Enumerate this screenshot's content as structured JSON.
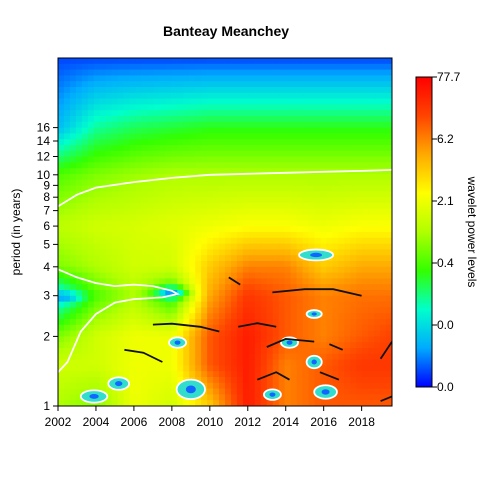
{
  "chart_data": {
    "type": "heatmap",
    "title": "Banteay Meanchey",
    "xlabel": "",
    "ylabel": "period (in years)",
    "colorbar_label": "wavelet power levels",
    "xlim": [
      2002,
      2019.6
    ],
    "ylim_period": [
      1,
      32
    ],
    "y_scale": "log2",
    "x_ticks": [
      2002,
      2004,
      2006,
      2008,
      2010,
      2012,
      2014,
      2016,
      2018
    ],
    "y_ticks": [
      1,
      2,
      3,
      4,
      5,
      6,
      7,
      8,
      9,
      10,
      12,
      14,
      16
    ],
    "colorbar_ticks": [
      "0.0",
      "0.0",
      "0.4",
      "2.1",
      "6.2",
      "77.7"
    ],
    "colorbar_colors": [
      "#0000ff",
      "#00aaff",
      "#00ffcc",
      "#33ff00",
      "#b0ff00",
      "#ffff00",
      "#ffaa00",
      "#ff4400",
      "#ff0000"
    ],
    "power_grid": {
      "time": [
        2002,
        2004,
        2006,
        2008,
        2010,
        2012,
        2014,
        2016,
        2018,
        2019.6
      ],
      "period": [
        1,
        1.5,
        2,
        3,
        4,
        6,
        10,
        16,
        32
      ],
      "level": [
        [
          0.5,
          0.45,
          0.6,
          0.55,
          0.7,
          0.95,
          0.8,
          0.85,
          0.85,
          0.85
        ],
        [
          0.55,
          0.55,
          0.6,
          0.6,
          0.85,
          0.95,
          0.8,
          0.85,
          0.9,
          0.9
        ],
        [
          0.45,
          0.55,
          0.6,
          0.6,
          0.85,
          0.95,
          0.85,
          0.8,
          0.85,
          0.88
        ],
        [
          0.2,
          0.4,
          0.5,
          0.35,
          0.75,
          0.9,
          0.85,
          0.8,
          0.82,
          0.82
        ],
        [
          0.45,
          0.5,
          0.55,
          0.55,
          0.7,
          0.8,
          0.8,
          0.7,
          0.75,
          0.75
        ],
        [
          0.52,
          0.55,
          0.56,
          0.58,
          0.6,
          0.62,
          0.62,
          0.6,
          0.62,
          0.62
        ],
        [
          0.4,
          0.45,
          0.48,
          0.5,
          0.5,
          0.5,
          0.5,
          0.5,
          0.5,
          0.5
        ],
        [
          0.15,
          0.28,
          0.32,
          0.34,
          0.36,
          0.36,
          0.36,
          0.36,
          0.36,
          0.36
        ],
        [
          0.05,
          0.05,
          0.05,
          0.05,
          0.05,
          0.05,
          0.05,
          0.05,
          0.05,
          0.05
        ]
      ]
    },
    "significance_contours": [
      {
        "kind": "boundary",
        "points": [
          [
            2002,
            7.3
          ],
          [
            2003,
            8.2
          ],
          [
            2004,
            8.8
          ],
          [
            2006,
            9.3
          ],
          [
            2008,
            9.7
          ],
          [
            2010,
            10
          ],
          [
            2012,
            10.1
          ],
          [
            2014,
            10.2
          ],
          [
            2016,
            10.3
          ],
          [
            2018,
            10.4
          ],
          [
            2019.6,
            10.5
          ]
        ]
      },
      {
        "kind": "boundary",
        "points": [
          [
            2002,
            3.9
          ],
          [
            2003,
            3.6
          ],
          [
            2004,
            3.4
          ],
          [
            2005,
            3.3
          ],
          [
            2006,
            3.35
          ],
          [
            2007,
            3.3
          ],
          [
            2008,
            3.15
          ],
          [
            2008.3,
            3.05
          ],
          [
            2007.5,
            2.95
          ],
          [
            2006,
            2.9
          ],
          [
            2005,
            2.8
          ],
          [
            2004,
            2.5
          ],
          [
            2003.2,
            2.1
          ],
          [
            2002.5,
            1.55
          ],
          [
            2002,
            1.4
          ]
        ]
      },
      {
        "kind": "island",
        "cx": 2015.6,
        "cy": 4.5,
        "rx": 0.9,
        "ry": 0.25
      },
      {
        "kind": "island",
        "cx": 2008.3,
        "cy": 1.88,
        "rx": 0.45,
        "ry": 0.1
      },
      {
        "kind": "island",
        "cx": 2014.2,
        "cy": 1.88,
        "rx": 0.45,
        "ry": 0.1
      },
      {
        "kind": "island",
        "cx": 2015.5,
        "cy": 2.5,
        "rx": 0.4,
        "ry": 0.1
      },
      {
        "kind": "island",
        "cx": 2015.5,
        "cy": 1.55,
        "rx": 0.4,
        "ry": 0.1
      },
      {
        "kind": "island",
        "cx": 2005.2,
        "cy": 1.25,
        "rx": 0.55,
        "ry": 0.08
      },
      {
        "kind": "island",
        "cx": 2003.9,
        "cy": 1.1,
        "rx": 0.7,
        "ry": 0.07
      },
      {
        "kind": "island",
        "cx": 2009,
        "cy": 1.18,
        "rx": 0.75,
        "ry": 0.12
      },
      {
        "kind": "island",
        "cx": 2016.1,
        "cy": 1.15,
        "rx": 0.6,
        "ry": 0.08
      },
      {
        "kind": "island",
        "cx": 2013.3,
        "cy": 1.12,
        "rx": 0.45,
        "ry": 0.06
      }
    ],
    "ridge_lines": [
      [
        [
          2005.5,
          1.75
        ],
        [
          2006.5,
          1.7
        ],
        [
          2007.5,
          1.55
        ]
      ],
      [
        [
          2007,
          2.25
        ],
        [
          2008,
          2.27
        ],
        [
          2009.5,
          2.2
        ],
        [
          2010.5,
          2.1
        ]
      ],
      [
        [
          2011.5,
          2.2
        ],
        [
          2012.5,
          2.28
        ],
        [
          2013.5,
          2.2
        ]
      ],
      [
        [
          2011,
          3.6
        ],
        [
          2011.6,
          3.35
        ]
      ],
      [
        [
          2013.3,
          3.1
        ],
        [
          2015,
          3.2
        ],
        [
          2016.5,
          3.2
        ],
        [
          2018,
          3.0
        ]
      ],
      [
        [
          2013,
          1.8
        ],
        [
          2014,
          1.95
        ],
        [
          2015.5,
          1.9
        ]
      ],
      [
        [
          2016.3,
          1.85
        ],
        [
          2017,
          1.75
        ]
      ],
      [
        [
          2012.5,
          1.3
        ],
        [
          2013.5,
          1.4
        ],
        [
          2014.2,
          1.3
        ]
      ],
      [
        [
          2015.8,
          1.4
        ],
        [
          2016.8,
          1.3
        ]
      ],
      [
        [
          2019,
          1.6
        ],
        [
          2019.6,
          1.9
        ]
      ],
      [
        [
          2019,
          1.05
        ],
        [
          2019.6,
          1.1
        ]
      ]
    ],
    "local_minima": [
      {
        "x": 2002.5,
        "y": 2.95,
        "depth": 0.12
      },
      {
        "x": 2008,
        "y": 3.1,
        "depth": 0.28
      }
    ],
    "grid": false,
    "legend": "colorbar-right"
  }
}
